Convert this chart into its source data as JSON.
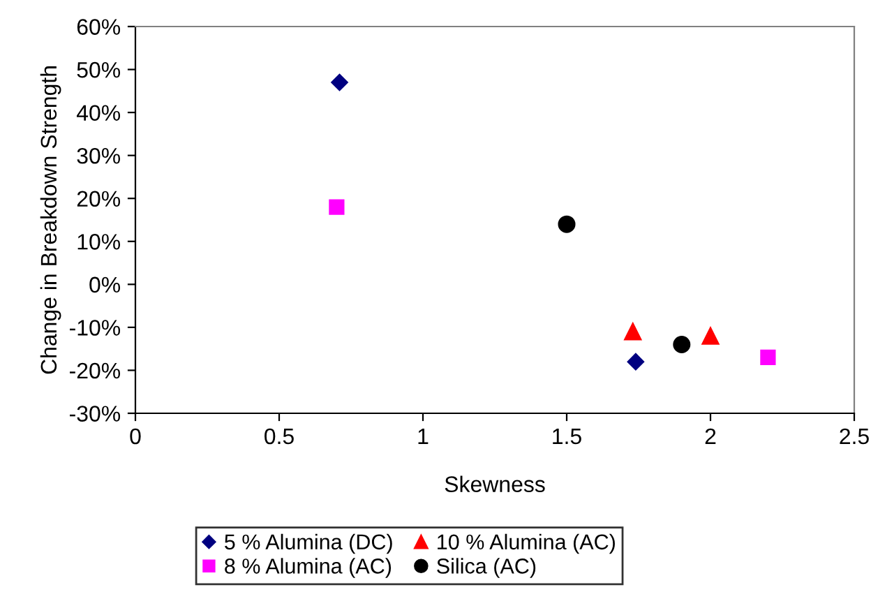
{
  "chart_data": {
    "type": "scatter",
    "xlabel": "Skewness",
    "ylabel": "Change in Breakdown Strength",
    "series": [
      {
        "name": "5 % Alumina (DC)",
        "color": "#000080",
        "marker": "diamond",
        "x": [
          0.71,
          1.74
        ],
        "values": [
          47,
          -18
        ]
      },
      {
        "name": "8 % Alumina (AC)",
        "color": "#ff00ff",
        "marker": "square",
        "x": [
          0.7,
          2.2
        ],
        "values": [
          18,
          -17
        ]
      },
      {
        "name": "10 % Alumina (AC)",
        "color": "#ff0000",
        "marker": "triangle",
        "x": [
          1.73,
          2.0
        ],
        "values": [
          -11,
          -12
        ]
      },
      {
        "name": "Silica (AC)",
        "color": "#000000",
        "marker": "circle",
        "x": [
          1.5,
          1.9
        ],
        "values": [
          14,
          -14
        ]
      }
    ],
    "xlim": [
      0,
      2.5
    ],
    "xticks": [
      0,
      0.5,
      1,
      1.5,
      2,
      2.5
    ],
    "ylim": [
      -30,
      60
    ],
    "yticks": [
      {
        "value": -30,
        "label": "-30%"
      },
      {
        "value": -20,
        "label": "-20%"
      },
      {
        "value": -10,
        "label": "-10%"
      },
      {
        "value": 0,
        "label": "0%"
      },
      {
        "value": 10,
        "label": "10%"
      },
      {
        "value": 20,
        "label": "20%"
      },
      {
        "value": 30,
        "label": "30%"
      },
      {
        "value": 40,
        "label": "40%"
      },
      {
        "value": 50,
        "label": "50%"
      },
      {
        "value": 60,
        "label": "60%"
      }
    ],
    "grid": false,
    "legend": "bottom"
  }
}
